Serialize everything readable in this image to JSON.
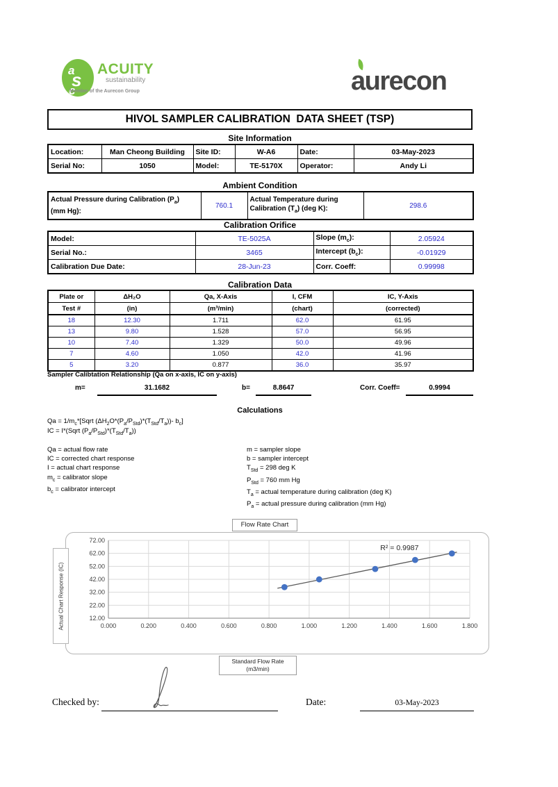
{
  "logos": {
    "acuity_monogram": "asc",
    "acuity_name": "ACUITY",
    "acuity_tagline": "sustainability",
    "acuity_member": "Member of the Aurecon Group",
    "aurecon_name": "aurecon"
  },
  "title": "HIVOL SAMPLER CALIBRATION  DATA SHEET (TSP)",
  "site_information": {
    "heading": "Site Information",
    "location_label": "Location:",
    "location_value": "Man Cheong Building",
    "site_id_label": "Site ID:",
    "site_id_value": "W-A6",
    "date_label": "Date:",
    "date_value": "03-May-2023",
    "serial_label": "Serial No:",
    "serial_value": "1050",
    "model_label": "Model:",
    "model_value": "TE-5170X",
    "operator_label": "Operator:",
    "operator_value": "Andy Li"
  },
  "ambient_condition": {
    "heading": "Ambient Condition",
    "pressure_label_html": "Actual Pressure during Calibration (P<sub>a</sub>)<br>(mm Hg):",
    "pressure_value": "760.1",
    "temperature_label_html": "Actual Temperature during<br>Calibration (T<sub>a</sub>) (deg K):",
    "temperature_value": "298.6"
  },
  "calibration_orifice": {
    "heading": "Calibration Orifice",
    "model_label": "Model:",
    "model_value": "TE-5025A",
    "slope_label_html": "Slope (m<sub>c</sub>):",
    "slope_value": "2.05924",
    "serial_label": "Serial No.:",
    "serial_value": "3465",
    "intercept_label_html": "Intercept (b<sub>c</sub>):",
    "intercept_value": "-0.01929",
    "due_label": "Calibration Due Date:",
    "due_value": "28-Jun-23",
    "corr_label": "Corr. Coeff:",
    "corr_value": "0.99998"
  },
  "calibration_data": {
    "heading": "Calibration Data",
    "headers1": [
      "Plate or",
      "ΔH₂O",
      "Qa, X-Axis",
      "I, CFM",
      "IC, Y-Axis"
    ],
    "headers2": [
      "Test #",
      "(in)",
      "(m³/min)",
      "(chart)",
      "(corrected)"
    ],
    "rows": [
      [
        "18",
        "12.30",
        "1.711",
        "62.0",
        "61.95"
      ],
      [
        "13",
        "9.80",
        "1.528",
        "57.0",
        "56.95"
      ],
      [
        "10",
        "7.40",
        "1.329",
        "50.0",
        "49.96"
      ],
      [
        "7",
        "4.60",
        "1.050",
        "42.0",
        "41.96"
      ],
      [
        "5",
        "3.20",
        "0.877",
        "36.0",
        "35.97"
      ]
    ]
  },
  "relationship": {
    "heading": "Sampler Calibtation Relationship (Qa on x-axis, IC on y-axis)",
    "m_label": "m=",
    "m_value": "31.1682",
    "b_label": "b=",
    "b_value": "8.8647",
    "corr_label": "Corr. Coeff=",
    "corr_value": "0.9994"
  },
  "calculations": {
    "heading": "Calculations",
    "formula1_html": "Qa = 1/m<sub>c</sub>*[Sqrt (ΔH<sub>2</sub>O*(P<sub>a</sub>/P<sub>Std</sub>)*(T<sub>Std</sub>/T<sub>a</sub>))- b<sub>c</sub>]",
    "formula2_html": "IC = I*(Sqrt (P<sub>a</sub>/P<sub>Std</sub>)*(T<sub>Std</sub>/T<sub>a</sub>))",
    "left_defs_html": [
      "Qa = actual flow rate",
      "IC = corrected chart response",
      "I = actual chart response",
      "m<sub>c</sub>  = calibrator slope",
      "b<sub>c</sub>  = calibrator intercept"
    ],
    "right_defs_html": [
      "m = sampler slope",
      "b  = sampler intercept",
      "T<sub>Std</sub> = 298 deg K",
      "P<sub>Std</sub> = 760 mm Hg",
      "T<sub>a</sub> = actual temperature during calibration (deg K)",
      "P<sub>a</sub> = actual pressure during calibration (mm Hg)"
    ]
  },
  "chart_data": {
    "type": "scatter",
    "title": "Flow Rate Chart",
    "ylabel": "Actual Chart Response (IC)",
    "xlabel_line1": "Standard Flow Rate",
    "xlabel_line2": "(m3/min)",
    "x": [
      0.877,
      1.05,
      1.329,
      1.528,
      1.711
    ],
    "y": [
      35.97,
      41.96,
      49.96,
      56.95,
      61.95
    ],
    "trendline": {
      "slope": 31.1682,
      "intercept": 8.8647
    },
    "r2_label": "R² = 0.9987",
    "r2_label_pos": [
      1.45,
      64.5
    ],
    "xlim": [
      0,
      1.8
    ],
    "x_tick_step": 0.2,
    "x_tick_decimals": 3,
    "ylim": [
      12,
      72
    ],
    "y_tick_step": 10,
    "y_tick_decimals": 2,
    "grid": true,
    "point_color": "#4472C4",
    "line_color": "#595959"
  },
  "footer": {
    "checked_by_label": "Checked by:",
    "date_label": "Date:",
    "date_value": "03-May-2023"
  },
  "colors": {
    "value_blue": "#2b2bcc",
    "acuity_green": "#7ac143",
    "aurecon_gray": "#464646"
  }
}
